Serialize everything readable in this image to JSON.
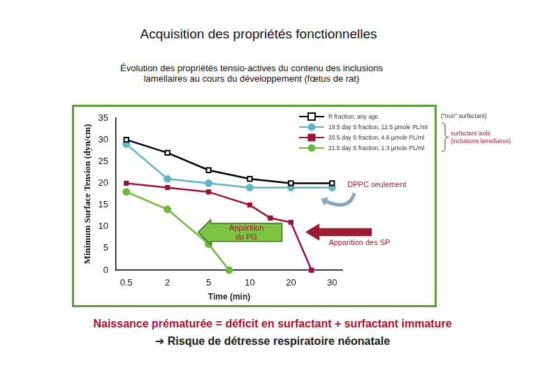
{
  "chart_data": {
    "type": "line",
    "title": "Acquisition des propriétés fonctionnelles",
    "subtitle": "Évolution des propriétés tensio-actives du contenu des inclusions lamellaires au cours du développement (fœtus de rat)",
    "x_label": "Time (min)",
    "y_label": "Minimum Surface Tension (dyn/cm)",
    "categories": [
      "0.5",
      null,
      "2",
      null,
      "5",
      null,
      "10",
      null,
      "20",
      null,
      "30"
    ],
    "series": [
      {
        "name": "R fraction, any age",
        "color": "#000000",
        "marker": "open_square",
        "line_style": "solid",
        "values": [
          30,
          null,
          27,
          null,
          23,
          null,
          21,
          null,
          20,
          null,
          20
        ]
      },
      {
        "name": "19.5 day S fraction, 12.5 µmole PL/ml",
        "color": "#63b3c6",
        "marker": "circle",
        "line_style": "solid",
        "values": [
          29,
          null,
          21,
          null,
          20,
          null,
          19,
          null,
          19,
          null,
          19
        ]
      },
      {
        "name": "20.5 day S fraction, 4.6 µmole PL/ml",
        "color": "#9b1239",
        "marker": "square",
        "line_style": "solid",
        "values": [
          20,
          null,
          19,
          null,
          18,
          null,
          15,
          12,
          11,
          0,
          null
        ]
      },
      {
        "name": "21.5 day S fraction, 1.3 µmole PL/ml",
        "color": "#6cb83a",
        "marker": "circle",
        "line_style": "solid",
        "values": [
          18,
          null,
          14,
          null,
          6,
          0,
          null,
          null,
          null,
          null,
          null
        ]
      }
    ],
    "ylim": [
      0,
      35
    ],
    "yticks": [
      0,
      5,
      10,
      15,
      20,
      25,
      30,
      35
    ],
    "grid": false,
    "legend": "top-right",
    "annotations": {
      "dppc": "DPPC seulement",
      "pg": "Apparition du PG",
      "sp": "Apparition des SP",
      "non_surfactant": "(\"non\" surfactant)",
      "isolated": [
        "surfactant isolé",
        "(inclusions lamellaires)"
      ]
    }
  },
  "footer": [
    "Naissance prématurée = déficit en surfactant + surfactant immature",
    "➔ Risque de détresse respiratoire néonatale"
  ]
}
